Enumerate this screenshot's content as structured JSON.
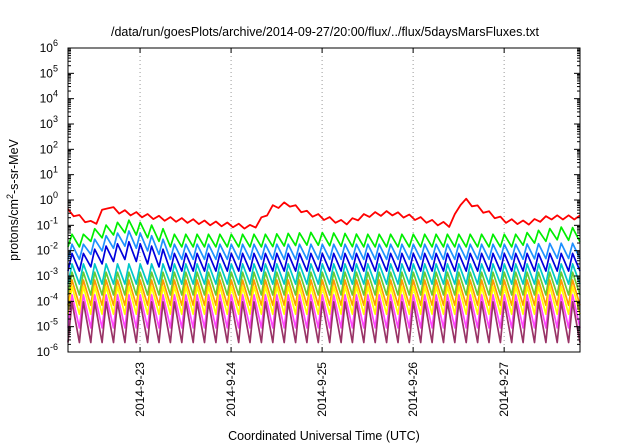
{
  "chart_data": {
    "type": "line",
    "title": "/data/run/goesPlots/archive/2014-09-27/20:00/flux/../flux/5daysMarsFluxes.txt",
    "xlabel": "Coordinated Universal Time (UTC)",
    "ylabel": "protons/cm^2-s-sr-MeV",
    "ylabel_parts": {
      "pre": "protons/cm",
      "sup": "2",
      "post": "-s-sr-MeV"
    },
    "y_scale": "log",
    "ylim": [
      1e-06,
      1000000.0
    ],
    "y_ticks": [
      {
        "value": 1e-06,
        "base": "10",
        "exp": "-6"
      },
      {
        "value": 1e-05,
        "base": "10",
        "exp": "-5"
      },
      {
        "value": 0.0001,
        "base": "10",
        "exp": "-4"
      },
      {
        "value": 0.001,
        "base": "10",
        "exp": "-3"
      },
      {
        "value": 0.01,
        "base": "10",
        "exp": "-2"
      },
      {
        "value": 0.1,
        "base": "10",
        "exp": "-1"
      },
      {
        "value": 1,
        "base": "10",
        "exp": "0"
      },
      {
        "value": 10.0,
        "base": "10",
        "exp": "1"
      },
      {
        "value": 100.0,
        "base": "10",
        "exp": "2"
      },
      {
        "value": 1000.0,
        "base": "10",
        "exp": "3"
      },
      {
        "value": 10000.0,
        "base": "10",
        "exp": "4"
      },
      {
        "value": 100000.0,
        "base": "10",
        "exp": "5"
      },
      {
        "value": 1000000.0,
        "base": "10",
        "exp": "6"
      }
    ],
    "xlim": [
      "2014-09-22 05:00",
      "2014-09-27 20:00"
    ],
    "x_ticks": [
      {
        "value": "2014-09-23 00:00",
        "label": "2014-9-23"
      },
      {
        "value": "2014-09-24 00:00",
        "label": "2014-9-24"
      },
      {
        "value": "2014-09-25 00:00",
        "label": "2014-9-25"
      },
      {
        "value": "2014-09-26 00:00",
        "label": "2014-9-26"
      },
      {
        "value": "2014-09-27 00:00",
        "label": "2014-9-27"
      }
    ],
    "grid": {
      "vertical": true,
      "horizontal": false,
      "style": "dotted"
    },
    "legend": "none",
    "series": [
      {
        "color": "#ff0000",
        "style": "decay",
        "points": [
          [
            "2014-09-22 05:00",
            0.35
          ],
          [
            "2014-09-22 12:00",
            0.1
          ],
          [
            "2014-09-22 15:00",
            0.6
          ],
          [
            "2014-09-22 18:00",
            0.35
          ],
          [
            "2014-09-22 21:00",
            0.3
          ],
          [
            "2014-09-23 00:00",
            0.25
          ],
          [
            "2014-09-23 06:00",
            0.18
          ],
          [
            "2014-09-23 12:00",
            0.15
          ],
          [
            "2014-09-23 18:00",
            0.12
          ],
          [
            "2014-09-24 00:00",
            0.1
          ],
          [
            "2014-09-24 06:00",
            0.08
          ],
          [
            "2014-09-24 11:00",
            0.5
          ],
          [
            "2014-09-24 15:00",
            0.7
          ],
          [
            "2014-09-24 20:00",
            0.3
          ],
          [
            "2014-09-25 00:00",
            0.2
          ],
          [
            "2014-09-25 06:00",
            0.12
          ],
          [
            "2014-09-25 12:00",
            0.25
          ],
          [
            "2014-09-25 18:00",
            0.3
          ],
          [
            "2014-09-26 00:00",
            0.2
          ],
          [
            "2014-09-26 06:00",
            0.12
          ],
          [
            "2014-09-26 10:00",
            0.1
          ],
          [
            "2014-09-26 13:00",
            1.1
          ],
          [
            "2014-09-26 18:00",
            0.4
          ],
          [
            "2014-09-27 00:00",
            0.15
          ],
          [
            "2014-09-27 06:00",
            0.12
          ],
          [
            "2014-09-27 12:00",
            0.2
          ],
          [
            "2014-09-27 20:00",
            0.2
          ]
        ],
        "teeth_period_hours": 3,
        "tooth_factor": 1.8
      },
      {
        "color": "#00ee00",
        "style": "sawtooth",
        "level": 0.025,
        "amplitude": 0.5,
        "hump": [
          [
            15,
            0.09
          ],
          [
            64,
            0.03
          ],
          [
            130,
            0.05
          ]
        ]
      },
      {
        "color": "#1e90ff",
        "style": "sawtooth",
        "level": 0.009,
        "amplitude": 0.6,
        "hump": [
          [
            15,
            0.03
          ],
          [
            130,
            0.01
          ]
        ]
      },
      {
        "color": "#0000dd",
        "style": "sawtooth",
        "level": 0.0035,
        "amplitude": 0.7,
        "hump": [
          [
            15,
            0.01
          ]
        ]
      },
      {
        "color": "#00c8c8",
        "style": "sawtooth",
        "level": 0.0012,
        "amplitude": 0.8,
        "hump": []
      },
      {
        "color": "#66cc33",
        "style": "sawtooth",
        "level": 0.0005,
        "amplitude": 0.9,
        "hump": []
      },
      {
        "color": "#ff9900",
        "style": "sawtooth",
        "level": 0.00022,
        "amplitude": 1.0,
        "hump": []
      },
      {
        "color": "#ffff00",
        "style": "sawtooth",
        "level": 0.00011,
        "amplitude": 1.1,
        "hump": []
      },
      {
        "color": "#ff44ff",
        "style": "sawtooth",
        "level": 4e-05,
        "amplitude": 1.3,
        "hump": []
      },
      {
        "color": "#993366",
        "style": "sawtooth",
        "level": 1.5e-05,
        "amplitude": 1.6,
        "hump": []
      }
    ]
  }
}
